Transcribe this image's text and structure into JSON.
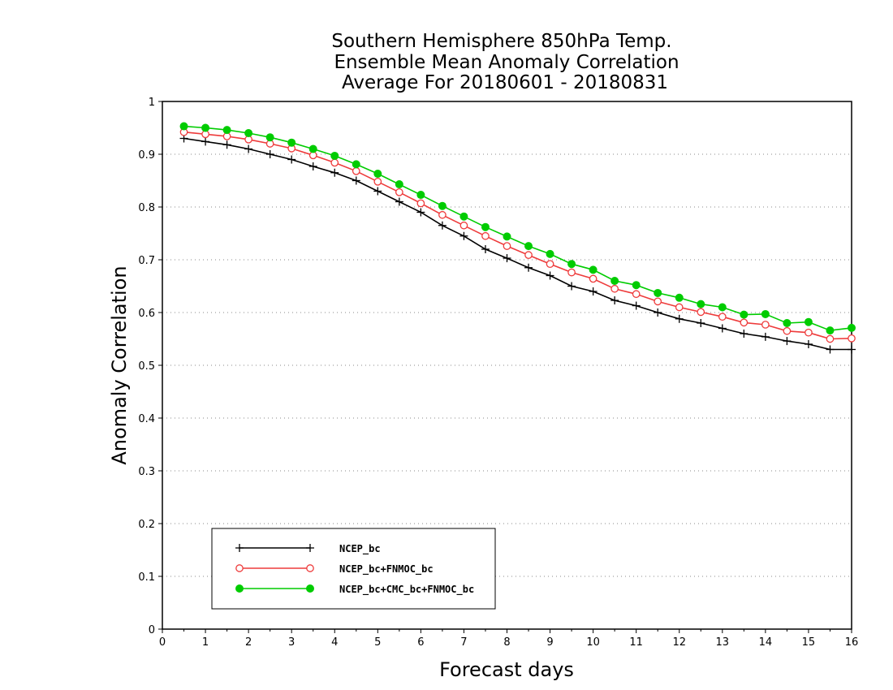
{
  "chart_data": {
    "type": "line",
    "title_lines": [
      "Southern Hemisphere 850hPa Temp.",
      "Ensemble Mean Anomaly Correlation",
      "Average For 20180601 - 20180831"
    ],
    "xlabel": "Forecast days",
    "ylabel": "Anomaly Correlation",
    "xlim": [
      0,
      16
    ],
    "ylim": [
      0,
      1
    ],
    "x_ticks": [
      "0",
      "1",
      "2",
      "3",
      "4",
      "5",
      "6",
      "7",
      "8",
      "9",
      "10",
      "11",
      "12",
      "13",
      "14",
      "15",
      "16"
    ],
    "y_ticks": [
      "0",
      "0.1",
      "0.2",
      "0.3",
      "0.4",
      "0.5",
      "0.6",
      "0.7",
      "0.8",
      "0.9",
      "1"
    ],
    "grid": "dotted horizontal",
    "legend_position": "bottom-left",
    "x": [
      0.5,
      1,
      1.5,
      2,
      2.5,
      3,
      3.5,
      4,
      4.5,
      5,
      5.5,
      6,
      6.5,
      7,
      7.5,
      8,
      8.5,
      9,
      9.5,
      10,
      10.5,
      11,
      11.5,
      12,
      12.5,
      13,
      13.5,
      14,
      14.5,
      15,
      15.5,
      16
    ],
    "series": [
      {
        "name": "NCEP_bc",
        "color": "#000000",
        "marker": "plus",
        "values": [
          0.93,
          0.924,
          0.918,
          0.91,
          0.9,
          0.89,
          0.877,
          0.865,
          0.85,
          0.83,
          0.81,
          0.79,
          0.765,
          0.745,
          0.72,
          0.703,
          0.685,
          0.67,
          0.65,
          0.64,
          0.623,
          0.613,
          0.6,
          0.588,
          0.58,
          0.57,
          0.56,
          0.554,
          0.546,
          0.54,
          0.53,
          0.53
        ]
      },
      {
        "name": "NCEP_bc+FNMOC_bc",
        "color": "#ee3b3b",
        "marker": "open-circle",
        "values": [
          0.942,
          0.938,
          0.934,
          0.928,
          0.92,
          0.911,
          0.898,
          0.884,
          0.868,
          0.848,
          0.828,
          0.807,
          0.785,
          0.765,
          0.745,
          0.726,
          0.709,
          0.692,
          0.676,
          0.664,
          0.645,
          0.635,
          0.621,
          0.61,
          0.601,
          0.592,
          0.581,
          0.577,
          0.565,
          0.562,
          0.55,
          0.551
        ]
      },
      {
        "name": "NCEP_bc+CMC_bc+FNMOC_bc",
        "color": "#00cc00",
        "marker": "filled-circle",
        "values": [
          0.953,
          0.95,
          0.946,
          0.94,
          0.932,
          0.922,
          0.91,
          0.897,
          0.881,
          0.863,
          0.843,
          0.823,
          0.802,
          0.782,
          0.762,
          0.744,
          0.726,
          0.711,
          0.692,
          0.681,
          0.66,
          0.652,
          0.637,
          0.628,
          0.616,
          0.61,
          0.596,
          0.597,
          0.58,
          0.582,
          0.566,
          0.571
        ]
      }
    ]
  }
}
